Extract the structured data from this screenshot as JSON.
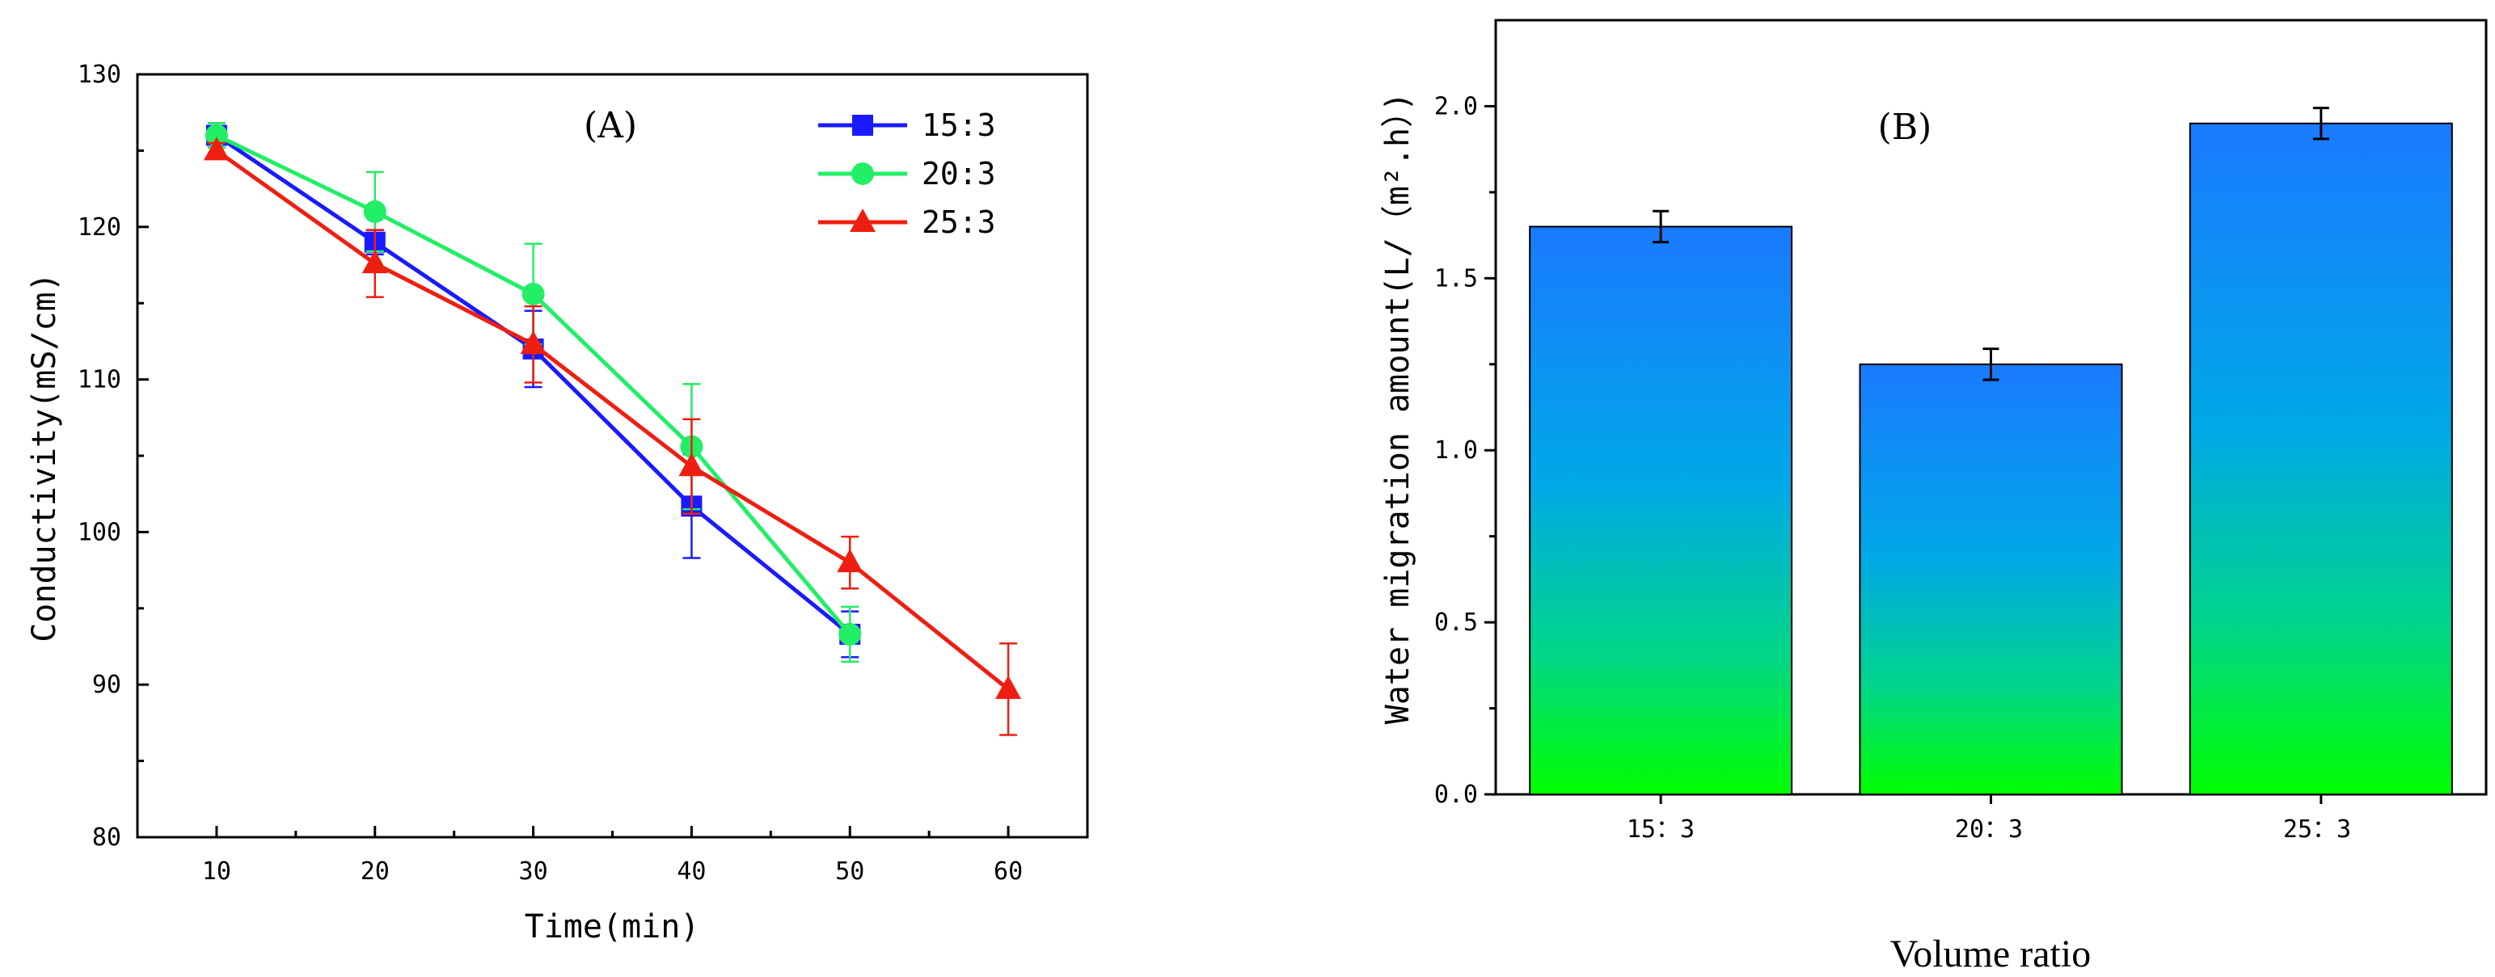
{
  "chart_data": [
    {
      "type": "line",
      "panel_label": "(A)",
      "xlabel": "Time(min)",
      "ylabel": "Conductivity(mS/cm)",
      "x": [
        10,
        20,
        30,
        40,
        50,
        60
      ],
      "xlim": [
        5,
        65
      ],
      "ylim": [
        80,
        130
      ],
      "xticks": [
        10,
        20,
        30,
        40,
        50,
        60
      ],
      "yticks": [
        80,
        90,
        100,
        110,
        120,
        130
      ],
      "legend_position": "top-right",
      "series": [
        {
          "name": "15:3",
          "color": "#1a1aff",
          "marker": "square",
          "x": [
            10,
            20,
            30,
            40,
            50
          ],
          "values": [
            126,
            119,
            112,
            101.7,
            93.3
          ],
          "errors": [
            0.8,
            0.8,
            2.5,
            3.4,
            1.5
          ]
        },
        {
          "name": "20:3",
          "color": "#22ee66",
          "marker": "circle",
          "x": [
            10,
            20,
            30,
            40,
            50
          ],
          "values": [
            126,
            121,
            115.6,
            105.6,
            93.3
          ],
          "errors": [
            0.8,
            2.6,
            3.3,
            4.1,
            1.8
          ]
        },
        {
          "name": "25:3",
          "color": "#ee1f11",
          "marker": "triangle",
          "x": [
            10,
            20,
            30,
            40,
            50,
            60
          ],
          "values": [
            125,
            117.6,
            112.3,
            104.3,
            98,
            89.7
          ],
          "errors": [
            0.5,
            2.2,
            2.5,
            3.1,
            1.7,
            3.0
          ]
        }
      ]
    },
    {
      "type": "bar",
      "panel_label": "(B)",
      "xlabel": "Volume ratio",
      "ylabel": "Water migration amount(L/（m².h）)",
      "categories": [
        "15：3",
        "20：3",
        "25：3"
      ],
      "values": [
        1.65,
        1.25,
        1.95
      ],
      "errors": [
        0.045,
        0.045,
        0.045
      ],
      "ylim": [
        0,
        2.25
      ],
      "yticks": [
        "0.0",
        "0.5",
        "1.0",
        "1.5",
        "2.0"
      ],
      "gradient_top": "#1a7aff",
      "gradient_bottom": "#00ff00"
    }
  ]
}
